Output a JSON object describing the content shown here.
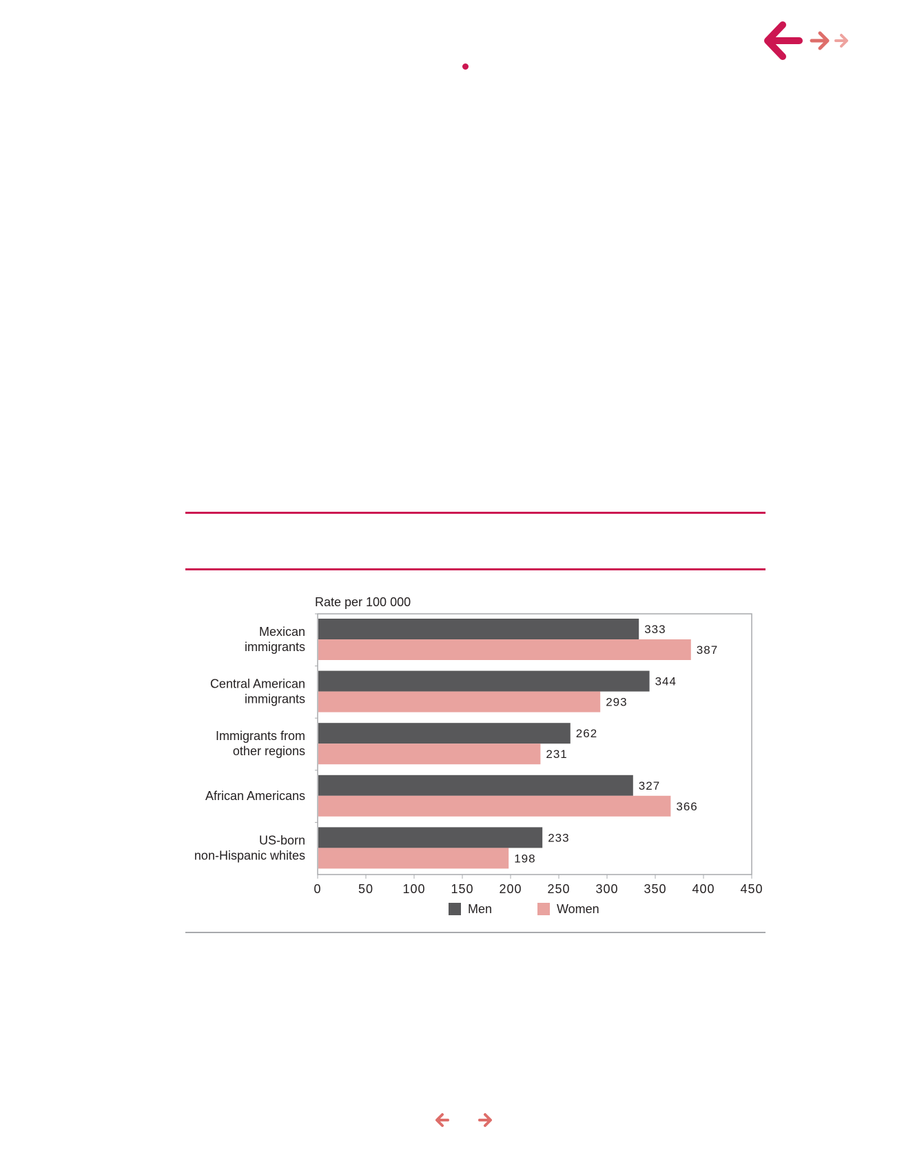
{
  "colors": {
    "accent": "#cc1651",
    "nav_mid": "#de6e6a",
    "nav_light": "#eea39f",
    "men": "#58585a",
    "women": "#e9a39f",
    "axis": "#a7a9ac"
  },
  "icons": {
    "back": "arrow-left-icon",
    "forward": "arrow-right-icon",
    "forward_secondary": "arrow-right-icon"
  },
  "chart_data": {
    "type": "bar",
    "orientation": "horizontal",
    "ylabel": "Rate per 100 000",
    "categories": [
      [
        "Mexican",
        "immigrants"
      ],
      [
        "Central American",
        "immigrants"
      ],
      [
        "Immigrants from",
        "other regions"
      ],
      [
        "African Americans"
      ],
      [
        "US-born",
        "non-Hispanic whites"
      ]
    ],
    "series": [
      {
        "name": "Men",
        "color": "#58585a",
        "values": [
          333,
          344,
          262,
          327,
          233
        ]
      },
      {
        "name": "Women",
        "color": "#e9a39f",
        "values": [
          387,
          293,
          231,
          366,
          198
        ]
      }
    ],
    "xlim": [
      0,
      450
    ],
    "xticks": [
      "0",
      "50",
      "100",
      "150",
      "200",
      "250",
      "300",
      "350",
      "400",
      "450"
    ],
    "legend_position": "bottom",
    "grid": false
  }
}
